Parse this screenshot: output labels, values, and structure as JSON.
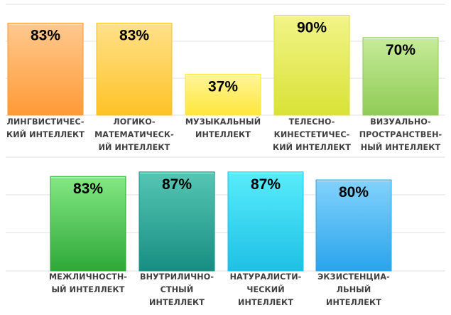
{
  "chart_data": [
    {
      "type": "bar",
      "categories": [
        "ЛИНГВИСТИЧЕС-\nКИЙ ИНТЕЛЛЕКТ",
        "ЛОГИКО-\nМАТЕМАТИЧЕСК-\nИЙ ИНТЕЛЛЕКТ",
        "МУЗЫКАЛЬНЫЙ\nИНТЕЛЛЕКТ",
        "ТЕЛЕСНО-\nКИНЕСТЕТИЧЕС-\nКИЙ ИНТЕЛЛЕКТ",
        "ВИЗУАЛЬНО-\nПРОСТРАНСТВЕН-\nНЫЙ ИНТЕЛЛЕКТ"
      ],
      "values": [
        83,
        83,
        37,
        90,
        70
      ],
      "data_labels": [
        "83%",
        "83%",
        "37%",
        "90%",
        "70%"
      ],
      "colors": [
        [
          "#ffc98f",
          "#ff9a35"
        ],
        [
          "#ffe18a",
          "#ffc225"
        ],
        [
          "#fff59a",
          "#ffe63a"
        ],
        [
          "#f2f488",
          "#d9e236"
        ],
        [
          "#c6ec98",
          "#8fcb56"
        ]
      ],
      "ylim": [
        0,
        100
      ],
      "grid": true
    },
    {
      "type": "bar",
      "categories": [
        "МЕЖЛИЧНОСТН-\nЫЙ ИНТЕЛЛЕКТ",
        "ВНУТРИЛИЧНО-\nСТНЫЙ\nИНТЕЛЛЕКТ",
        "НАТУРАЛИСТИ-\nЧЕСКИЙ\nИНТЕЛЛЕКТ",
        "ЭКЗИСТЕНЦИА-\nЛЬНЫЙ\nИНТЕЛЛЕКТ"
      ],
      "values": [
        83,
        87,
        87,
        80
      ],
      "data_labels": [
        "83%",
        "87%",
        "87%",
        "80%"
      ],
      "colors": [
        [
          "#84e884",
          "#2ea838"
        ],
        [
          "#56c6b4",
          "#178e82"
        ],
        [
          "#58ecfc",
          "#1ec0e4"
        ],
        [
          "#82d2fc",
          "#2aa4ec"
        ]
      ],
      "ylim": [
        0,
        100
      ],
      "grid": true
    }
  ]
}
